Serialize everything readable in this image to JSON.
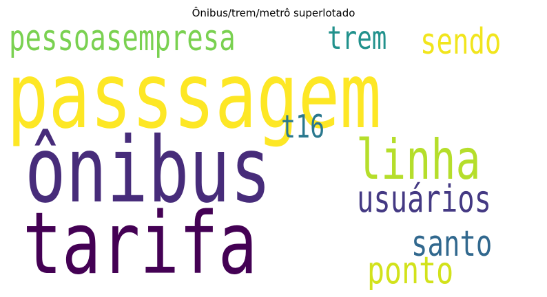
{
  "title": "Ônibus/trem/metrô superlotado",
  "words": {
    "passsagem": {
      "text": "passsagem",
      "color": "#fde725"
    },
    "onibus": {
      "text": "ônibus",
      "color": "#472c7a"
    },
    "tarifa": {
      "text": "tarifa",
      "color": "#440154"
    },
    "pessoasempresa": {
      "text": "pessoasempresa",
      "color": "#7ad151"
    },
    "linha": {
      "text": "linha",
      "color": "#b5de2b"
    },
    "trem": {
      "text": "trem",
      "color": "#21918c"
    },
    "sendo": {
      "text": "sendo",
      "color": "#f1e51d"
    },
    "t16": {
      "text": "t16",
      "color": "#2a788e"
    },
    "usuarios": {
      "text": "usuários",
      "color": "#443983"
    },
    "santo": {
      "text": "santo",
      "color": "#31688e"
    },
    "ponto": {
      "text": "ponto",
      "color": "#d2e21b"
    }
  }
}
